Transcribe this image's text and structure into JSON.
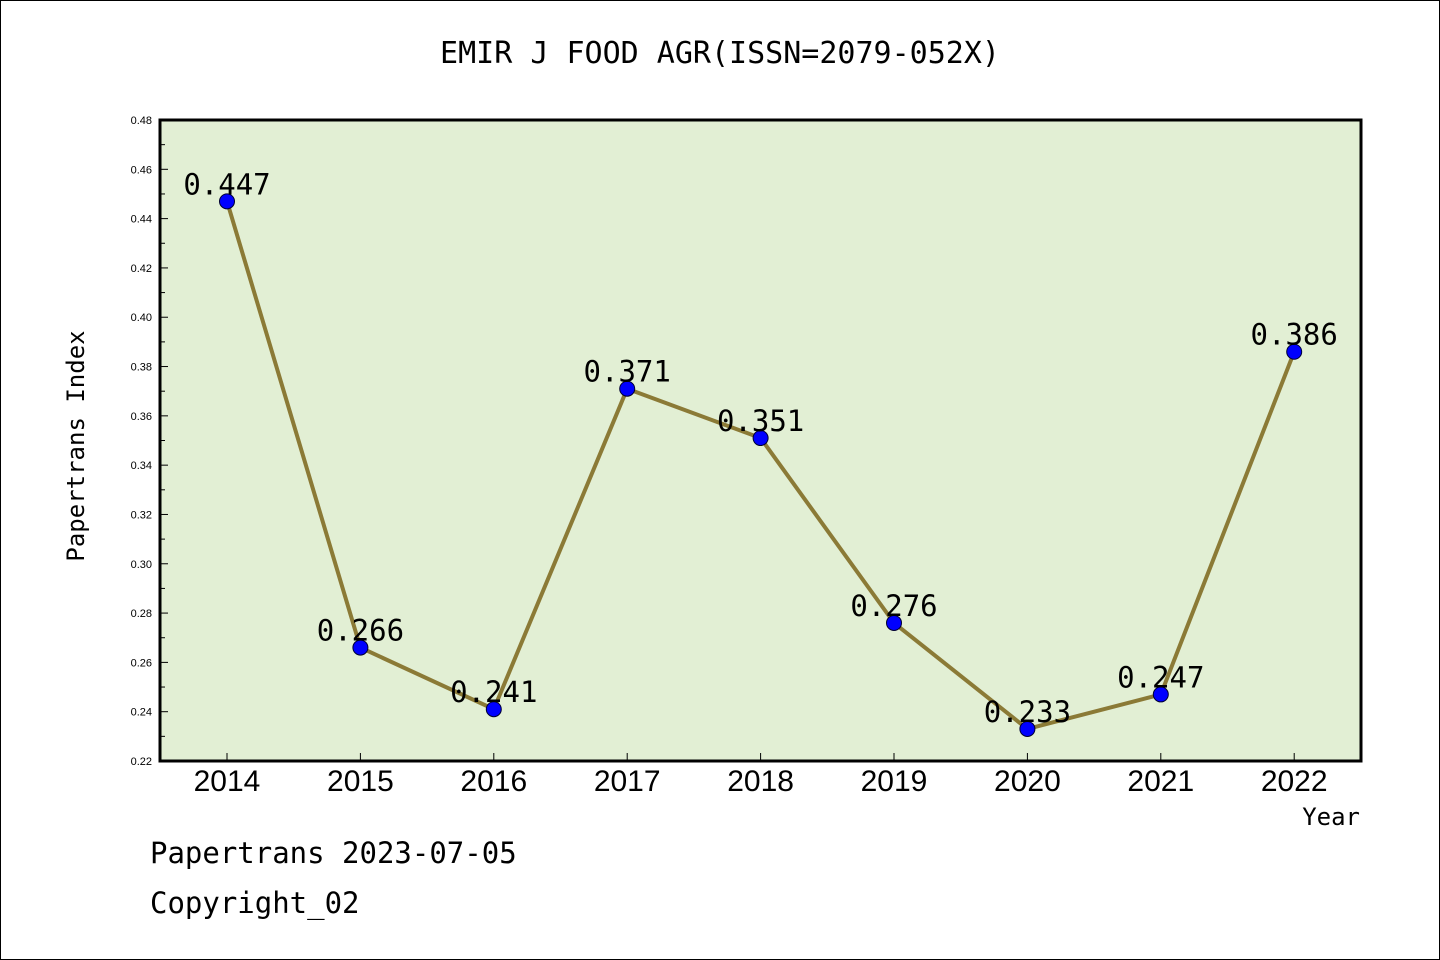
{
  "chart_data": {
    "type": "line",
    "title": "EMIR J FOOD AGR(ISSN=2079-052X)",
    "xlabel": "Year",
    "ylabel": "Papertrans Index",
    "categories": [
      "2014",
      "2015",
      "2016",
      "2017",
      "2018",
      "2019",
      "2020",
      "2021",
      "2022"
    ],
    "values": [
      0.447,
      0.266,
      0.241,
      0.371,
      0.351,
      0.276,
      0.233,
      0.247,
      0.386
    ],
    "data_labels": [
      "0.447",
      "0.266",
      "0.241",
      "0.371",
      "0.351",
      "0.276",
      "0.233",
      "0.247",
      "0.386"
    ],
    "ylim": [
      0.22,
      0.48
    ],
    "yticks": [
      "0.22",
      "0.24",
      "0.26",
      "0.28",
      "0.30",
      "0.32",
      "0.34",
      "0.36",
      "0.38",
      "0.40",
      "0.42",
      "0.44",
      "0.46",
      "0.48"
    ],
    "grid": false,
    "colors": {
      "plot_bg": "#e2efd4",
      "line": "#8b7a36",
      "marker": "#0000ff"
    }
  },
  "footer": {
    "line1": "Papertrans 2023-07-05",
    "line2": "Copyright_02"
  }
}
